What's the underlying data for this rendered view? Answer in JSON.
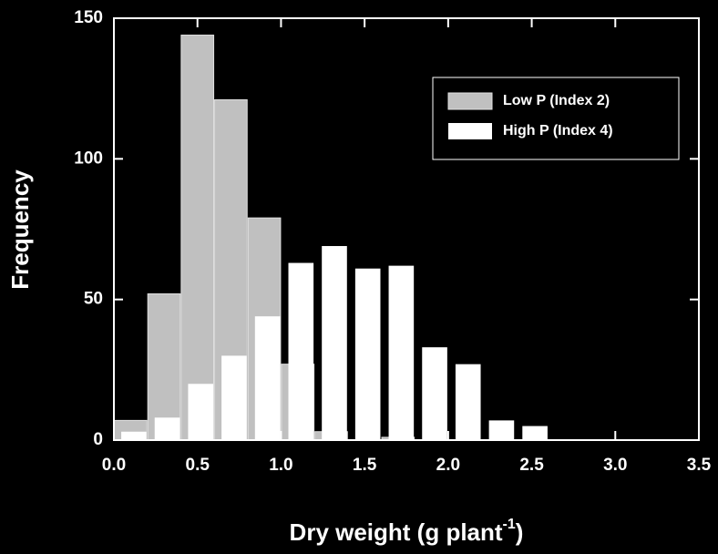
{
  "chart_data": {
    "type": "histogram",
    "xlabel": {
      "text": "Dry weight (g plant",
      "superscript": "-1",
      "suffix": ")"
    },
    "ylabel": "Frequency",
    "bins": [
      0,
      0.2,
      0.4,
      0.6,
      0.8,
      1.0,
      1.2,
      1.4,
      1.6,
      1.8,
      2.0,
      2.2,
      2.4,
      2.6
    ],
    "series": [
      {
        "name": "Low P (Index 2)",
        "color": "#c0c0c0",
        "values": [
          7,
          52,
          144,
          121,
          79,
          27,
          3,
          0,
          1,
          0,
          0,
          0,
          0
        ]
      },
      {
        "name": "High P (Index 4)",
        "color": "#ffffff",
        "values": [
          3,
          8,
          20,
          30,
          44,
          63,
          69,
          61,
          62,
          33,
          27,
          7,
          5
        ]
      }
    ],
    "xlim": [
      0,
      3.5
    ],
    "xticks": [
      {
        "value": 0,
        "label": "0.0"
      },
      {
        "value": 0.5,
        "label": "0.5"
      },
      {
        "value": 1,
        "label": "1.0"
      },
      {
        "value": 1.5,
        "label": "1.5"
      },
      {
        "value": 2,
        "label": "2.0"
      },
      {
        "value": 2.5,
        "label": "2.5"
      },
      {
        "value": 3,
        "label": "3.0"
      },
      {
        "value": 3.5,
        "label": "3.5"
      }
    ],
    "ylim": [
      0,
      150
    ],
    "yticks": [
      0,
      50,
      100,
      150
    ],
    "legend": "upper right"
  }
}
